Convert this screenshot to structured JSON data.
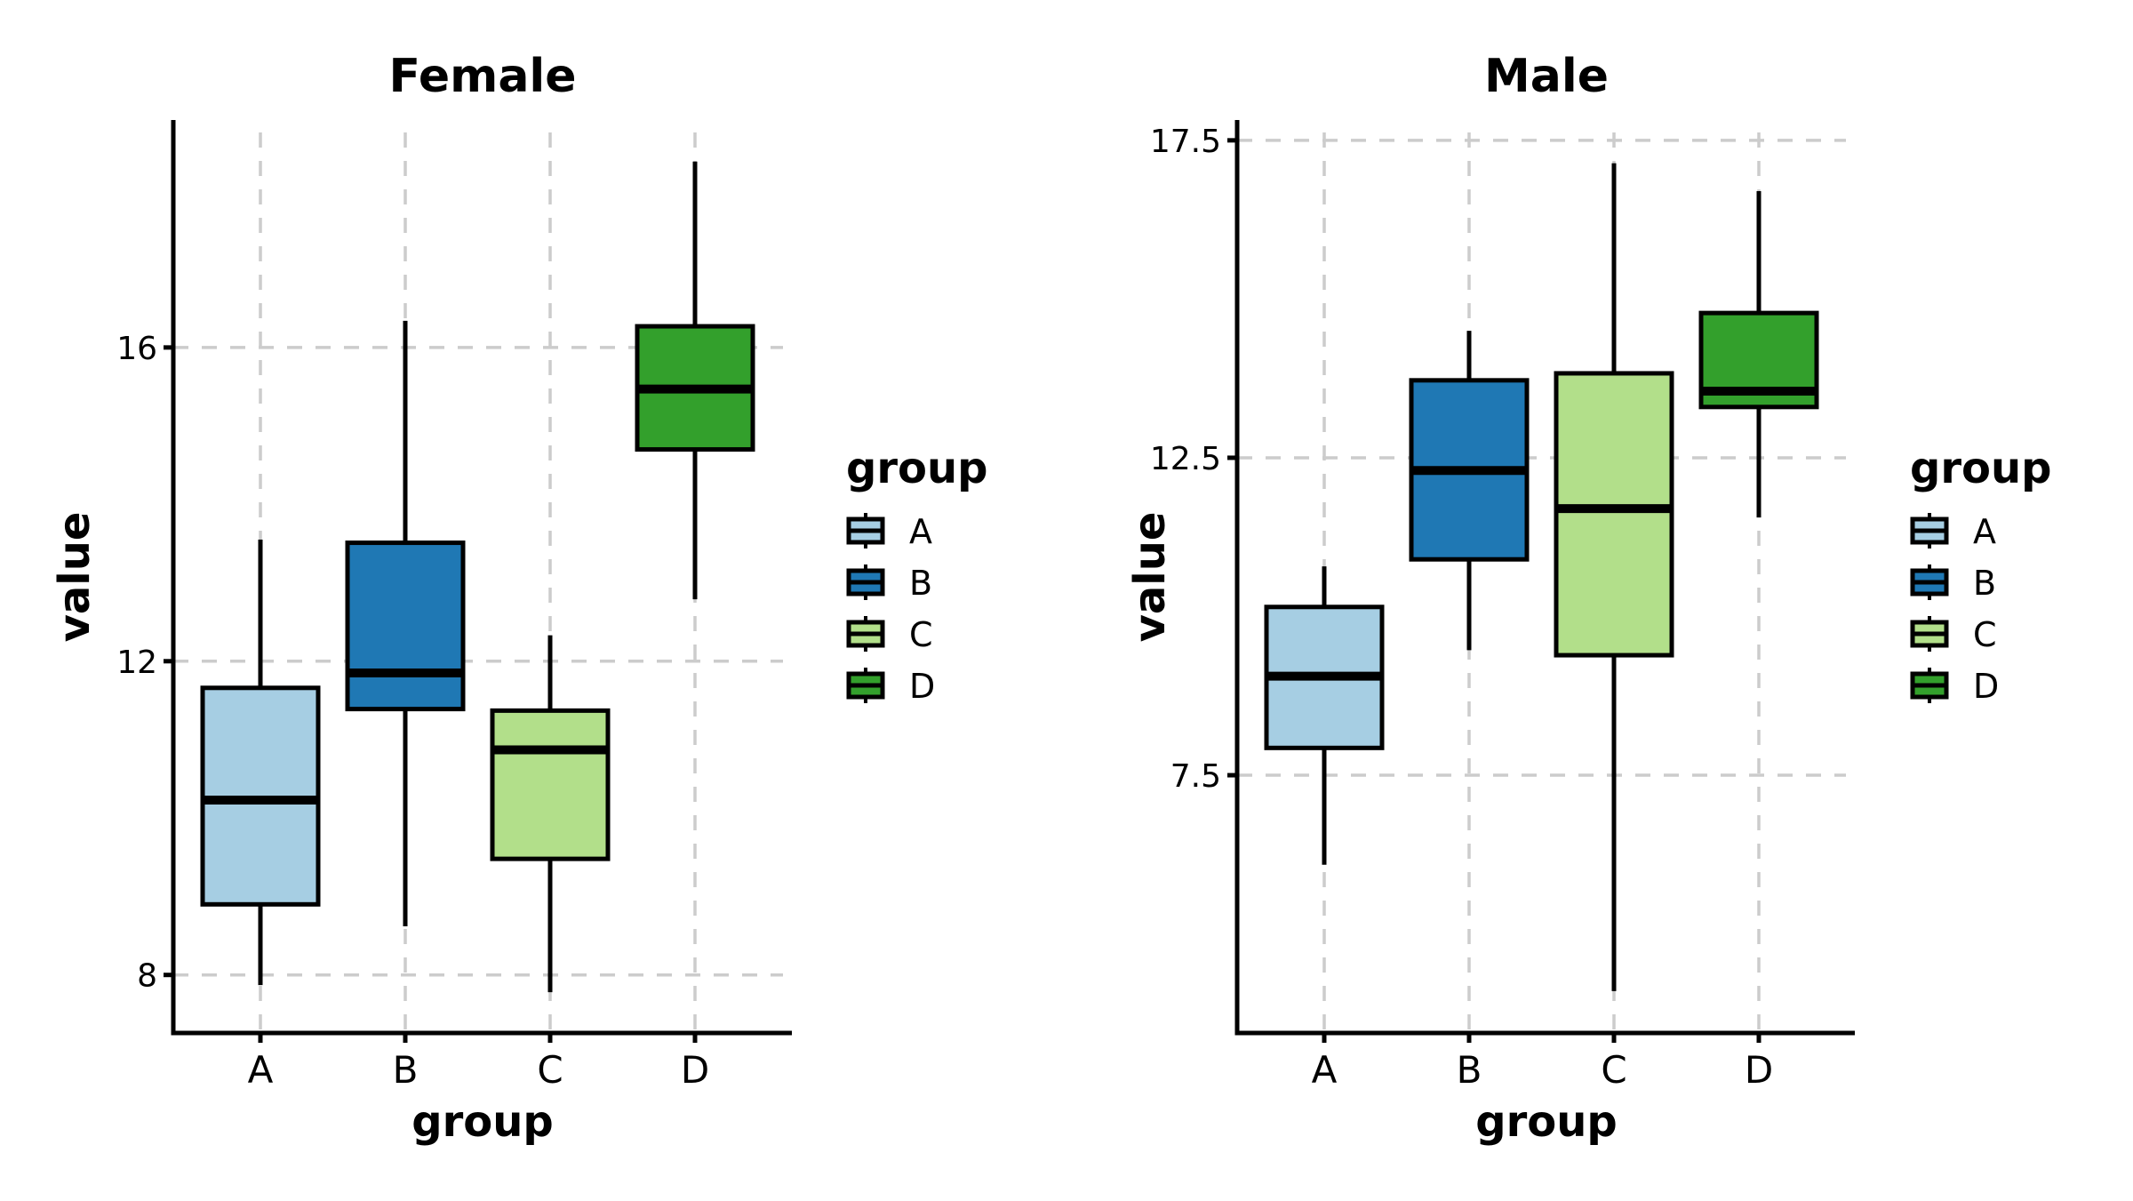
{
  "chart_data": [
    {
      "type": "box",
      "title": "Female",
      "xlabel": "group",
      "ylabel": "value",
      "categories": [
        "A",
        "B",
        "C",
        "D"
      ],
      "yticks": [
        8,
        12,
        16
      ],
      "ytick_labels": [
        "8",
        "12",
        "16"
      ],
      "ylim": [
        7.26,
        18.9
      ],
      "grid": true,
      "boxes": [
        {
          "group": "A",
          "whisker_low": 7.87,
          "q1": 8.9,
          "median": 10.23,
          "q3": 11.66,
          "whisker_high": 13.55
        },
        {
          "group": "B",
          "whisker_low": 8.62,
          "q1": 11.39,
          "median": 11.85,
          "q3": 13.51,
          "whisker_high": 16.34
        },
        {
          "group": "C",
          "whisker_low": 7.78,
          "q1": 9.48,
          "median": 10.87,
          "q3": 11.37,
          "whisker_high": 12.33
        },
        {
          "group": "D",
          "whisker_low": 12.79,
          "q1": 14.7,
          "median": 15.47,
          "q3": 16.27,
          "whisker_high": 18.37
        }
      ],
      "legend": {
        "title": "group",
        "position": "right",
        "entries": [
          "A",
          "B",
          "C",
          "D"
        ]
      }
    },
    {
      "type": "box",
      "title": "Male",
      "xlabel": "group",
      "ylabel": "value",
      "categories": [
        "A",
        "B",
        "C",
        "D"
      ],
      "yticks": [
        7.5,
        12.5,
        17.5
      ],
      "ytick_labels": [
        "7.5",
        "12.5",
        "17.5"
      ],
      "ylim": [
        3.44,
        17.82
      ],
      "grid": true,
      "boxes": [
        {
          "group": "A",
          "whisker_low": 6.09,
          "q1": 7.93,
          "median": 9.06,
          "q3": 10.15,
          "whisker_high": 10.79
        },
        {
          "group": "B",
          "whisker_low": 9.47,
          "q1": 10.9,
          "median": 12.3,
          "q3": 13.72,
          "whisker_high": 14.5
        },
        {
          "group": "C",
          "whisker_low": 4.1,
          "q1": 9.39,
          "median": 11.7,
          "q3": 13.83,
          "whisker_high": 17.14
        },
        {
          "group": "D",
          "whisker_low": 11.56,
          "q1": 13.3,
          "median": 13.55,
          "q3": 14.78,
          "whisker_high": 16.7
        }
      ],
      "legend": {
        "title": "group",
        "position": "right",
        "entries": [
          "A",
          "B",
          "C",
          "D"
        ]
      }
    }
  ],
  "colors": {
    "A": "#a6cee3",
    "B": "#1f78b4",
    "C": "#b2df8a",
    "D": "#33a02c"
  }
}
